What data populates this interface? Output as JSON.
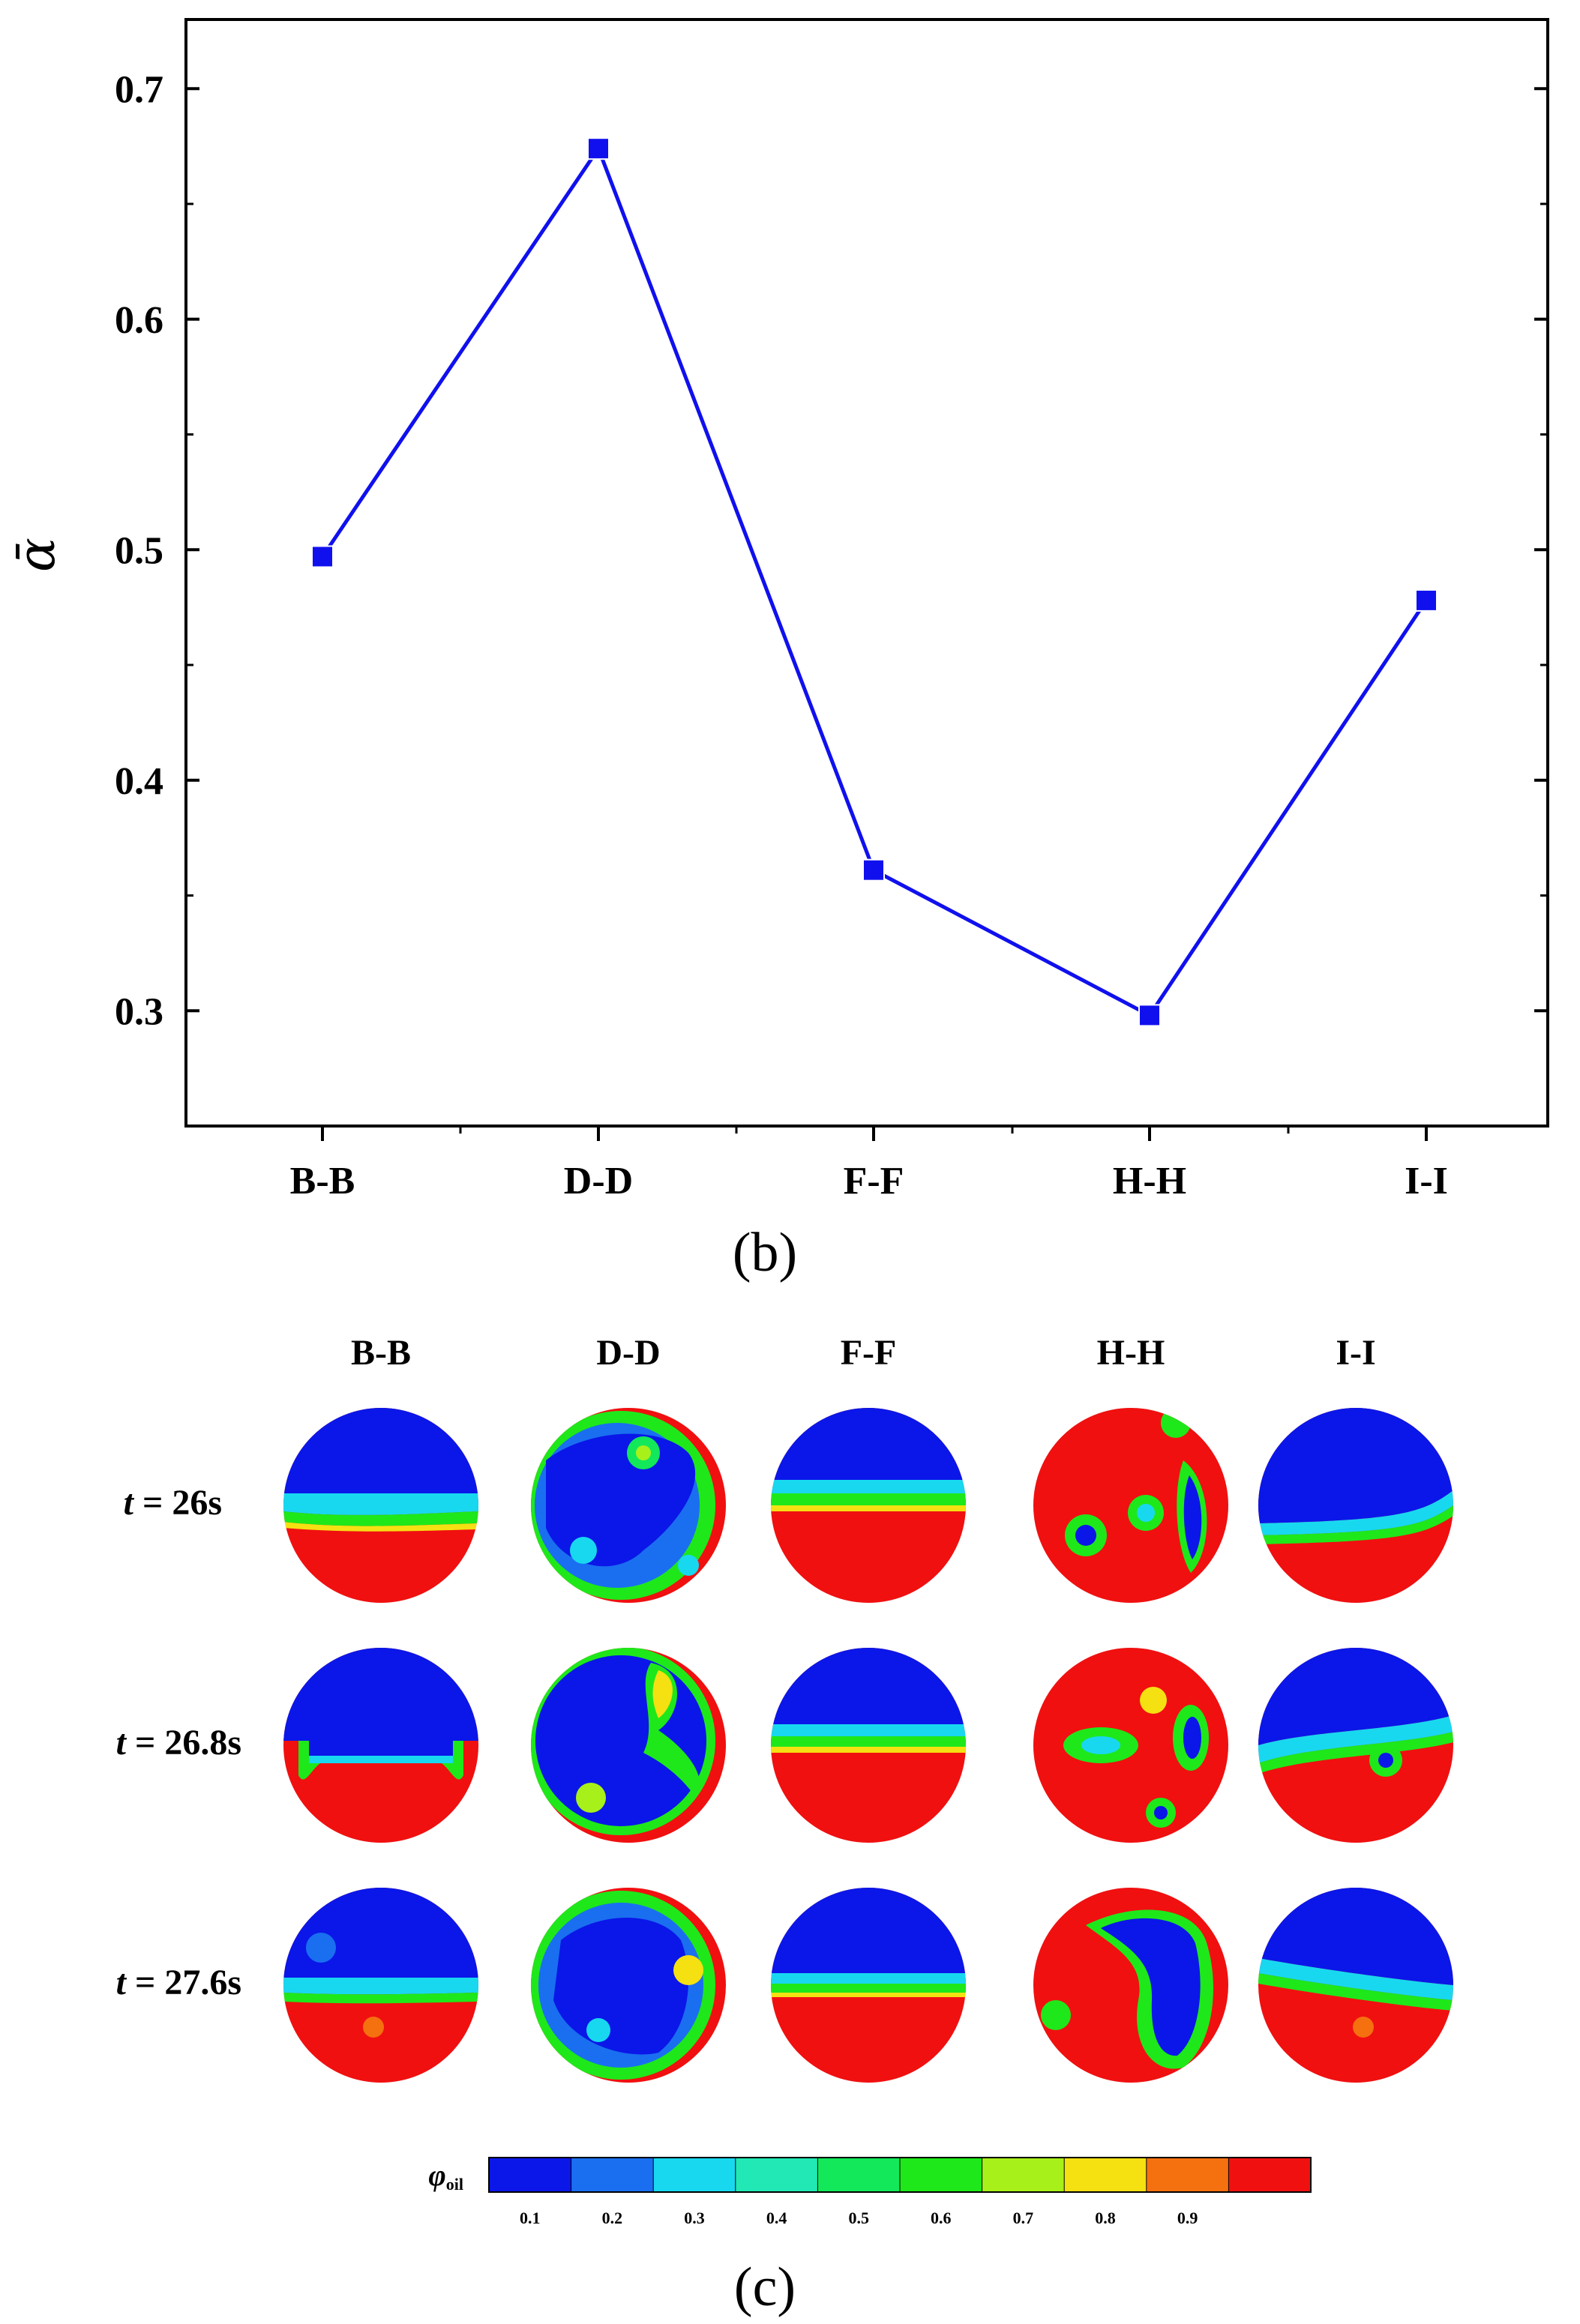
{
  "chart_data": {
    "type": "line",
    "categories": [
      "B-B",
      "D-D",
      "F-F",
      "H-H",
      "I-I"
    ],
    "values": [
      0.497,
      0.674,
      0.361,
      0.298,
      0.478
    ],
    "ylabel": "ᾱ",
    "ylim": [
      0.25,
      0.73
    ],
    "yticks": [
      0.3,
      0.4,
      0.5,
      0.6,
      0.7
    ],
    "ytick_labels": [
      "0.3",
      "0.4",
      "0.5",
      "0.6",
      "0.7"
    ],
    "marker": "square",
    "color": "#1010ee",
    "grid": false,
    "panel_label": "(b)"
  },
  "contour_panel": {
    "panel_label": "(c)",
    "columns": [
      "B-B",
      "D-D",
      "F-F",
      "H-H",
      "I-I"
    ],
    "rows": [
      {
        "prefix": "t",
        "suffix": " = 26s"
      },
      {
        "prefix": "t",
        "suffix": " = 26.8s"
      },
      {
        "prefix": "t",
        "suffix": " = 27.6s"
      }
    ],
    "colorbar": {
      "label_main": "φ",
      "label_sub": "oil",
      "tick_labels": [
        "0.1",
        "0.2",
        "0.3",
        "0.4",
        "0.5",
        "0.6",
        "0.7",
        "0.8",
        "0.9"
      ],
      "colors": [
        "#0a17e8",
        "#1a6ff0",
        "#18d8f0",
        "#21e8b4",
        "#12e85a",
        "#1ee81a",
        "#a8f01a",
        "#f5e012",
        "#f5700e",
        "#f01010"
      ]
    }
  }
}
